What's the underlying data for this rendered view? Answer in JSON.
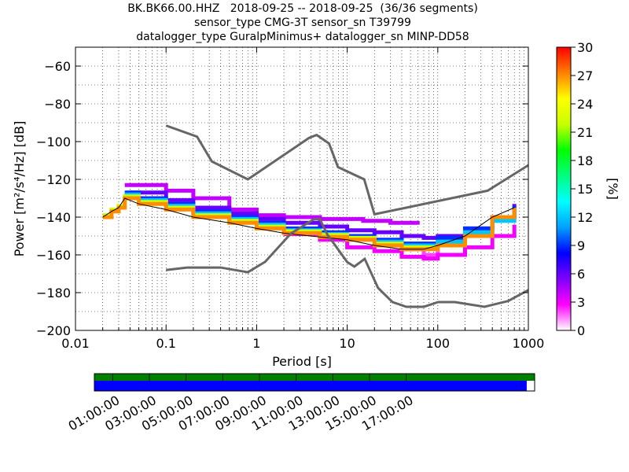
{
  "title_lines": [
    "BK.BK66.00.HHZ   2018-09-25 -- 2018-09-25  (36/36 segments)",
    "sensor_type CMG-3T sensor_sn T39799",
    "datalogger_type GuralpMinimus+ datalogger_sn MINP-DD58"
  ],
  "chart_data": {
    "type": "heatmap",
    "xlabel": "Period [s]",
    "ylabel": "Power [m²/s⁴/Hz] [dB]",
    "x_scale": "log",
    "xlim": [
      0.01,
      1000
    ],
    "ylim": [
      -200,
      -50
    ],
    "x_ticks": [
      "0.01",
      "0.1",
      "1",
      "10",
      "100",
      "1000"
    ],
    "y_ticks": [
      "−200",
      "−180",
      "−160",
      "−140",
      "−120",
      "−100",
      "−80",
      "−60"
    ],
    "grid": true,
    "colorbar": {
      "label": "[%]",
      "range": [
        0,
        30
      ],
      "ticks": [
        "0",
        "3",
        "6",
        "9",
        "12",
        "15",
        "18",
        "21",
        "24",
        "27",
        "30"
      ],
      "colormap": [
        "#ffffff",
        "#ff00ff",
        "#7f00ff",
        "#0000ff",
        "#00a0ff",
        "#00ffff",
        "#00ff7f",
        "#00ff00",
        "#c8ff00",
        "#ffff00",
        "#ff8000",
        "#ff0000"
      ]
    },
    "noise_models": [
      {
        "name": "NHNM",
        "color": "#666666",
        "x": [
          0.1,
          0.22,
          0.32,
          0.8,
          3.8,
          4.6,
          6.3,
          7.9,
          15.4,
          20,
          354.8,
          1000
        ],
        "y": [
          -91.5,
          -97.4,
          -110.5,
          -120,
          -98,
          -96.5,
          -101,
          -113.5,
          -120,
          -138.5,
          -126,
          -112.5
        ]
      },
      {
        "name": "NLNM",
        "color": "#666666",
        "x": [
          0.1,
          0.17,
          0.4,
          0.8,
          1.24,
          2.4,
          4.3,
          5.0,
          6.0,
          10.0,
          12.0,
          15.6,
          21.9,
          31.6,
          45,
          70,
          101,
          154,
          328,
          600,
          1000
        ],
        "y": [
          -168,
          -166.7,
          -166.7,
          -169.2,
          -163.7,
          -148.6,
          -141.1,
          -141.1,
          -149,
          -163.8,
          -166.2,
          -162.1,
          -177.5,
          -185,
          -187.5,
          -187.5,
          -185,
          -185,
          -187.5,
          -184.4,
          -178.6
        ]
      }
    ],
    "median_line": {
      "x": [
        0.02,
        0.025,
        0.03,
        0.035,
        0.05,
        0.1,
        0.2,
        0.5,
        1,
        2,
        5,
        10,
        20,
        40,
        70,
        100,
        200,
        400,
        700
      ],
      "y": [
        -140,
        -137,
        -135,
        -130,
        -133,
        -136,
        -140,
        -143,
        -146,
        -148.5,
        -150.5,
        -152,
        -155,
        -157,
        -157,
        -155,
        -150,
        -140,
        -135
      ]
    },
    "psd_bands": [
      {
        "x": [
          0.02,
          0.025,
          0.03,
          0.035,
          0.05,
          0.1,
          0.2,
          0.5,
          1,
          2,
          5,
          10,
          20,
          40,
          70,
          100,
          200,
          400,
          700
        ],
        "y": [
          -140,
          -137,
          -135,
          -130,
          -133,
          -136,
          -140,
          -143,
          -146,
          -148.5,
          -150.5,
          -152,
          -155,
          -157,
          -157,
          -155,
          -150,
          -140,
          -135
        ],
        "pct": 27
      },
      {
        "x": [
          0.02,
          0.025,
          0.03,
          0.035,
          0.05,
          0.1,
          0.2,
          0.5,
          1,
          2,
          5,
          10,
          20,
          40,
          70,
          100
        ],
        "y": [
          -139,
          -136,
          -134,
          -129,
          -132,
          -135,
          -139,
          -142,
          -145,
          -147.5,
          -149.5,
          -151,
          -154,
          -156,
          -156,
          -154
        ],
        "pct": 22
      },
      {
        "x": [
          0.035,
          0.05,
          0.1,
          0.2,
          0.5,
          1,
          2,
          5,
          10,
          20,
          40,
          70,
          100,
          200,
          400,
          700
        ],
        "y": [
          -128,
          -131,
          -134,
          -138,
          -141,
          -144,
          -147,
          -149,
          -151,
          -153,
          -155,
          -155,
          -153,
          -148,
          -142,
          -137
        ],
        "pct": 12
      },
      {
        "x": [
          0.035,
          0.05,
          0.1,
          0.2,
          0.5,
          1,
          2,
          5,
          10,
          20,
          40,
          70,
          100,
          200,
          400,
          700
        ],
        "y": [
          -127,
          -130,
          -133,
          -137,
          -140,
          -143,
          -146,
          -148,
          -150,
          -152,
          -154,
          -154,
          -151,
          -146,
          -140,
          -134
        ],
        "pct": 9
      },
      {
        "x": [
          0.04,
          0.1,
          0.2,
          0.5,
          1,
          2,
          5,
          10,
          20,
          40,
          70,
          100,
          200,
          400,
          700
        ],
        "y": [
          -127,
          -131,
          -135,
          -138,
          -141,
          -143,
          -145,
          -147,
          -148,
          -150,
          -151,
          -150,
          -146,
          -140,
          -133
        ],
        "pct": 6
      },
      {
        "x": [
          0.035,
          0.06,
          0.1,
          0.2,
          0.5,
          1,
          2,
          5,
          10,
          15,
          30,
          60
        ],
        "y": [
          -123,
          -123,
          -126,
          -130,
          -136,
          -139,
          -140,
          -141,
          -141,
          -142,
          -143,
          -144
        ],
        "pct": 4
      },
      {
        "x": [
          2,
          5,
          10,
          20,
          40,
          70,
          100,
          200,
          400,
          700
        ],
        "y": [
          -149,
          -152,
          -156,
          -158,
          -161,
          -162,
          -160,
          -156,
          -150,
          -144
        ],
        "pct": 3
      },
      {
        "x": [
          5,
          10,
          20,
          40,
          70,
          100
        ],
        "y": [
          -149,
          -152,
          -154,
          -157,
          -160,
          -158
        ],
        "pct": 2
      }
    ]
  },
  "availability": {
    "labels": [
      "01:00:00",
      "03:00:00",
      "05:00:00",
      "07:00:00",
      "09:00:00",
      "11:00:00",
      "13:00:00",
      "15:00:00",
      "17:00:00"
    ],
    "data_fraction": 0.982,
    "colors": {
      "top_bar": "#008000",
      "data_bar": "#0000ff"
    }
  }
}
